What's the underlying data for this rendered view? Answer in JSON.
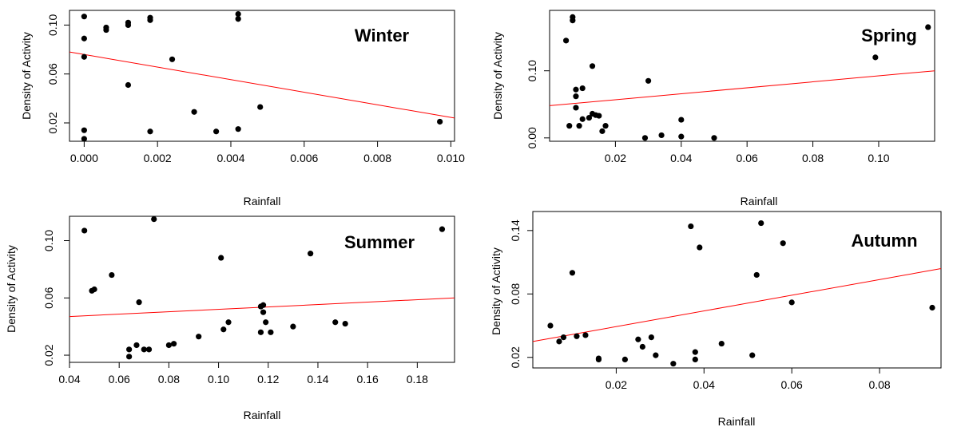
{
  "chart_data": [
    {
      "type": "scatter",
      "title": "Winter",
      "xlabel": "Rainfall",
      "ylabel": "Density of Activity",
      "xlim": [
        -0.0004,
        0.0101
      ],
      "ylim": [
        0.005,
        0.112
      ],
      "xticks": [
        0.0,
        0.002,
        0.004,
        0.006,
        0.008,
        0.01
      ],
      "xtick_labels": [
        "0.000",
        "0.002",
        "0.004",
        "0.006",
        "0.008",
        "0.010"
      ],
      "yticks": [
        0.02,
        0.06,
        0.1
      ],
      "ytick_labels": [
        "0.02",
        "0.06",
        "0.10"
      ],
      "points": [
        {
          "x": 0.0,
          "y": 0.107
        },
        {
          "x": 0.0,
          "y": 0.089
        },
        {
          "x": 0.0,
          "y": 0.074
        },
        {
          "x": 0.0,
          "y": 0.014
        },
        {
          "x": 0.0,
          "y": 0.007
        },
        {
          "x": 0.0006,
          "y": 0.098
        },
        {
          "x": 0.0006,
          "y": 0.096
        },
        {
          "x": 0.0012,
          "y": 0.102
        },
        {
          "x": 0.0012,
          "y": 0.1
        },
        {
          "x": 0.0012,
          "y": 0.051
        },
        {
          "x": 0.0018,
          "y": 0.106
        },
        {
          "x": 0.0018,
          "y": 0.104
        },
        {
          "x": 0.0018,
          "y": 0.013
        },
        {
          "x": 0.0024,
          "y": 0.072
        },
        {
          "x": 0.003,
          "y": 0.029
        },
        {
          "x": 0.0036,
          "y": 0.013
        },
        {
          "x": 0.0042,
          "y": 0.109
        },
        {
          "x": 0.0042,
          "y": 0.105
        },
        {
          "x": 0.0042,
          "y": 0.015
        },
        {
          "x": 0.0048,
          "y": 0.033
        },
        {
          "x": 0.0097,
          "y": 0.021
        }
      ],
      "regression": {
        "x1": -0.0004,
        "y1": 0.078,
        "x2": 0.0101,
        "y2": 0.024
      },
      "line_color": "#ff0000",
      "point_color": "#000000"
    },
    {
      "type": "scatter",
      "title": "Spring",
      "xlabel": "Rainfall",
      "ylabel": "Density of Activity",
      "xlim": [
        0.0,
        0.117
      ],
      "ylim": [
        -0.005,
        0.19
      ],
      "xticks": [
        0.02,
        0.04,
        0.06,
        0.08,
        0.1
      ],
      "xtick_labels": [
        "0.02",
        "0.04",
        "0.06",
        "0.08",
        "0.10"
      ],
      "yticks": [
        0.0,
        0.1
      ],
      "ytick_labels": [
        "0.00",
        "0.10"
      ],
      "points": [
        {
          "x": 0.007,
          "y": 0.18
        },
        {
          "x": 0.007,
          "y": 0.175
        },
        {
          "x": 0.005,
          "y": 0.145
        },
        {
          "x": 0.013,
          "y": 0.107
        },
        {
          "x": 0.008,
          "y": 0.072
        },
        {
          "x": 0.01,
          "y": 0.074
        },
        {
          "x": 0.008,
          "y": 0.062
        },
        {
          "x": 0.008,
          "y": 0.045
        },
        {
          "x": 0.01,
          "y": 0.028
        },
        {
          "x": 0.012,
          "y": 0.03
        },
        {
          "x": 0.013,
          "y": 0.036
        },
        {
          "x": 0.014,
          "y": 0.034
        },
        {
          "x": 0.015,
          "y": 0.033
        },
        {
          "x": 0.006,
          "y": 0.018
        },
        {
          "x": 0.009,
          "y": 0.018
        },
        {
          "x": 0.017,
          "y": 0.018
        },
        {
          "x": 0.016,
          "y": 0.01
        },
        {
          "x": 0.03,
          "y": 0.085
        },
        {
          "x": 0.029,
          "y": 0.0
        },
        {
          "x": 0.034,
          "y": 0.004
        },
        {
          "x": 0.04,
          "y": 0.027
        },
        {
          "x": 0.04,
          "y": 0.002
        },
        {
          "x": 0.05,
          "y": 0.0
        },
        {
          "x": 0.099,
          "y": 0.12
        },
        {
          "x": 0.115,
          "y": 0.165
        }
      ],
      "regression": {
        "x1": 0.0,
        "y1": 0.048,
        "x2": 0.117,
        "y2": 0.1
      },
      "line_color": "#ff0000",
      "point_color": "#000000"
    },
    {
      "type": "scatter",
      "title": "Summer",
      "xlabel": "Rainfall",
      "ylabel": "Density of Activity",
      "xlim": [
        0.04,
        0.195
      ],
      "ylim": [
        0.015,
        0.117
      ],
      "xticks": [
        0.04,
        0.06,
        0.08,
        0.1,
        0.12,
        0.14,
        0.16,
        0.18
      ],
      "xtick_labels": [
        "0.04",
        "0.06",
        "0.08",
        "0.10",
        "0.12",
        "0.14",
        "0.16",
        "0.18"
      ],
      "yticks": [
        0.02,
        0.06,
        0.1
      ],
      "ytick_labels": [
        "0.02",
        "0.06",
        "0.10"
      ],
      "points": [
        {
          "x": 0.046,
          "y": 0.107
        },
        {
          "x": 0.049,
          "y": 0.065
        },
        {
          "x": 0.05,
          "y": 0.066
        },
        {
          "x": 0.057,
          "y": 0.076
        },
        {
          "x": 0.064,
          "y": 0.024
        },
        {
          "x": 0.064,
          "y": 0.019
        },
        {
          "x": 0.067,
          "y": 0.027
        },
        {
          "x": 0.068,
          "y": 0.057
        },
        {
          "x": 0.07,
          "y": 0.024
        },
        {
          "x": 0.072,
          "y": 0.024
        },
        {
          "x": 0.074,
          "y": 0.115
        },
        {
          "x": 0.08,
          "y": 0.027
        },
        {
          "x": 0.082,
          "y": 0.028
        },
        {
          "x": 0.092,
          "y": 0.033
        },
        {
          "x": 0.101,
          "y": 0.088
        },
        {
          "x": 0.102,
          "y": 0.038
        },
        {
          "x": 0.104,
          "y": 0.043
        },
        {
          "x": 0.117,
          "y": 0.054
        },
        {
          "x": 0.117,
          "y": 0.036
        },
        {
          "x": 0.118,
          "y": 0.055
        },
        {
          "x": 0.118,
          "y": 0.05
        },
        {
          "x": 0.119,
          "y": 0.043
        },
        {
          "x": 0.121,
          "y": 0.036
        },
        {
          "x": 0.13,
          "y": 0.04
        },
        {
          "x": 0.137,
          "y": 0.091
        },
        {
          "x": 0.147,
          "y": 0.043
        },
        {
          "x": 0.151,
          "y": 0.042
        },
        {
          "x": 0.19,
          "y": 0.108
        }
      ],
      "regression": {
        "x1": 0.04,
        "y1": 0.047,
        "x2": 0.195,
        "y2": 0.06
      },
      "line_color": "#ff0000",
      "point_color": "#000000"
    },
    {
      "type": "scatter",
      "title": "Autumn",
      "xlabel": "Rainfall",
      "ylabel": "Density of Activity",
      "xlim": [
        0.001,
        0.094
      ],
      "ylim": [
        0.01,
        0.158
      ],
      "xticks": [
        0.02,
        0.04,
        0.06,
        0.08
      ],
      "xtick_labels": [
        "0.02",
        "0.04",
        "0.06",
        "0.08"
      ],
      "yticks": [
        0.02,
        0.08,
        0.14
      ],
      "ytick_labels": [
        "0.02",
        "0.08",
        "0.14"
      ],
      "points": [
        {
          "x": 0.005,
          "y": 0.05
        },
        {
          "x": 0.007,
          "y": 0.035
        },
        {
          "x": 0.008,
          "y": 0.039
        },
        {
          "x": 0.01,
          "y": 0.1
        },
        {
          "x": 0.011,
          "y": 0.04
        },
        {
          "x": 0.013,
          "y": 0.041
        },
        {
          "x": 0.016,
          "y": 0.019
        },
        {
          "x": 0.016,
          "y": 0.018
        },
        {
          "x": 0.022,
          "y": 0.018
        },
        {
          "x": 0.025,
          "y": 0.037
        },
        {
          "x": 0.026,
          "y": 0.03
        },
        {
          "x": 0.028,
          "y": 0.039
        },
        {
          "x": 0.029,
          "y": 0.022
        },
        {
          "x": 0.033,
          "y": 0.014
        },
        {
          "x": 0.037,
          "y": 0.144
        },
        {
          "x": 0.038,
          "y": 0.018
        },
        {
          "x": 0.038,
          "y": 0.025
        },
        {
          "x": 0.039,
          "y": 0.124
        },
        {
          "x": 0.044,
          "y": 0.033
        },
        {
          "x": 0.051,
          "y": 0.022
        },
        {
          "x": 0.052,
          "y": 0.098
        },
        {
          "x": 0.053,
          "y": 0.147
        },
        {
          "x": 0.058,
          "y": 0.128
        },
        {
          "x": 0.06,
          "y": 0.072
        },
        {
          "x": 0.092,
          "y": 0.067
        }
      ],
      "regression": {
        "x1": 0.001,
        "y1": 0.035,
        "x2": 0.094,
        "y2": 0.104
      },
      "line_color": "#ff0000",
      "point_color": "#000000"
    }
  ]
}
